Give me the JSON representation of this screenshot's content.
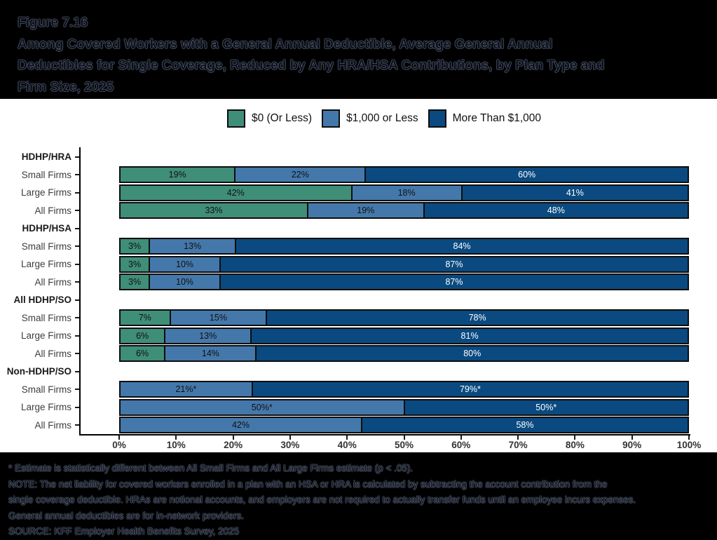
{
  "header": {
    "figure_label": "Figure 7.16",
    "title_lines": [
      "Among Covered Workers with a General Annual Deductible, Average General Annual",
      "Deductibles for Single Coverage, Reduced by Any HRA/HSA Contributions, by Plan Type and",
      "Firm Size, 2025"
    ]
  },
  "chart_data": {
    "type": "bar",
    "stacked": true,
    "orientation": "horizontal",
    "unit": "%",
    "xlim": [
      0,
      100
    ],
    "x_axis": {
      "ticks": [
        "0%",
        "10%",
        "20%",
        "30%",
        "40%",
        "50%",
        "60%",
        "70%",
        "80%",
        "90%",
        "100%"
      ]
    },
    "series": [
      {
        "id": "s0",
        "name": "$0 (Or Less)",
        "color": "#3f8e78",
        "label_color": "#111111"
      },
      {
        "id": "s1",
        "name": "$1,000 or Less",
        "color": "#4478ab",
        "label_color": "#111111"
      },
      {
        "id": "s2",
        "name": "More Than $1,000",
        "color": "#0a4a80",
        "label_color": "#ffffff"
      }
    ],
    "groups": [
      {
        "name": "HDHP/HRA",
        "rows": [
          {
            "name": "Small Firms",
            "segments": [
              {
                "series": "s0",
                "value": 19,
                "label": "19%"
              },
              {
                "series": "s1",
                "value": 22,
                "label": "22%"
              },
              {
                "series": "s2",
                "value": 60,
                "label": "60%"
              }
            ]
          },
          {
            "name": "Large Firms",
            "segments": [
              {
                "series": "s0",
                "value": 42,
                "label": "42%"
              },
              {
                "series": "s1",
                "value": 18,
                "label": "18%"
              },
              {
                "series": "s2",
                "value": 41,
                "label": "41%"
              }
            ]
          },
          {
            "name": "All Firms",
            "segments": [
              {
                "series": "s0",
                "value": 33,
                "label": "33%"
              },
              {
                "series": "s1",
                "value": 19,
                "label": "19%"
              },
              {
                "series": "s2",
                "value": 48,
                "label": "48%"
              }
            ]
          }
        ]
      },
      {
        "name": "HDHP/HSA",
        "rows": [
          {
            "name": "Small Firms",
            "segments": [
              {
                "series": "s0",
                "value": 3,
                "label": "3%"
              },
              {
                "series": "s1",
                "value": 13,
                "label": "13%"
              },
              {
                "series": "s2",
                "value": 84,
                "label": "84%"
              }
            ]
          },
          {
            "name": "Large Firms",
            "segments": [
              {
                "series": "s0",
                "value": 3,
                "label": "3%"
              },
              {
                "series": "s1",
                "value": 10,
                "label": "10%"
              },
              {
                "series": "s2",
                "value": 87,
                "label": "87%"
              }
            ]
          },
          {
            "name": "All Firms",
            "segments": [
              {
                "series": "s0",
                "value": 3,
                "label": "3%"
              },
              {
                "series": "s1",
                "value": 10,
                "label": "10%"
              },
              {
                "series": "s2",
                "value": 87,
                "label": "87%"
              }
            ]
          }
        ]
      },
      {
        "name": "All HDHP/SO",
        "rows": [
          {
            "name": "Small Firms",
            "segments": [
              {
                "series": "s0",
                "value": 7,
                "label": "7%"
              },
              {
                "series": "s1",
                "value": 15,
                "label": "15%"
              },
              {
                "series": "s2",
                "value": 78,
                "label": "78%"
              }
            ]
          },
          {
            "name": "Large Firms",
            "segments": [
              {
                "series": "s0",
                "value": 6,
                "label": "6%"
              },
              {
                "series": "s1",
                "value": 13,
                "label": "13%"
              },
              {
                "series": "s2",
                "value": 81,
                "label": "81%"
              }
            ]
          },
          {
            "name": "All Firms",
            "segments": [
              {
                "series": "s0",
                "value": 6,
                "label": "6%"
              },
              {
                "series": "s1",
                "value": 14,
                "label": "14%"
              },
              {
                "series": "s2",
                "value": 80,
                "label": "80%"
              }
            ]
          }
        ]
      },
      {
        "name": "Non-HDHP/SO",
        "rows": [
          {
            "name": "Small Firms",
            "segments": [
              {
                "series": "s1",
                "value": 21,
                "label": "21%*"
              },
              {
                "series": "s2",
                "value": 79,
                "label": "79%*"
              }
            ]
          },
          {
            "name": "Large Firms",
            "segments": [
              {
                "series": "s1",
                "value": 50,
                "label": "50%*"
              },
              {
                "series": "s2",
                "value": 50,
                "label": "50%*"
              }
            ]
          },
          {
            "name": "All Firms",
            "segments": [
              {
                "series": "s1",
                "value": 42,
                "label": "42%"
              },
              {
                "series": "s2",
                "value": 58,
                "label": "58%"
              }
            ]
          }
        ]
      }
    ]
  },
  "footnotes": {
    "lines": [
      "* Estimate is statistically different between All Small Firms and All Large Firms estimate (p < .05).",
      "NOTE: The net liability for covered workers enrolled in a plan with an HSA or HRA is calculated by subtracting the account contribution from the",
      "single coverage deductible. HRAs are notional accounts, and employers are not required to actually transfer funds until an employee incurs expenses.",
      "General annual deductibles are for in-network providers.",
      "SOURCE: KFF Employer Health Benefits Survey, 2025"
    ]
  }
}
